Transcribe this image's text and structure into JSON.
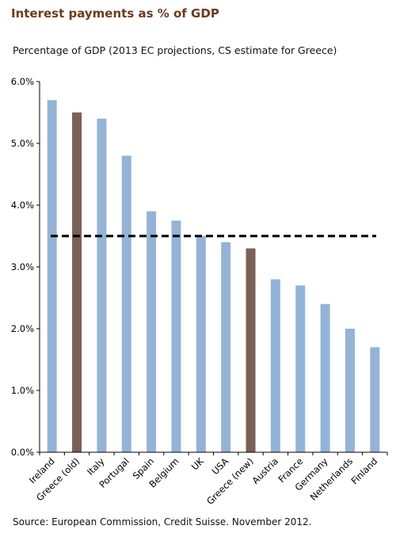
{
  "title": "Interest payments as % of GDP",
  "subtitle": "Percentage of GDP (2013 EC projections, CS estimate for Greece)",
  "source": "Source: European Commission, Credit Suisse. November 2012.",
  "colors": {
    "default_bar": "#95b3d7",
    "highlight_bar": "#7a6058",
    "reference_line": "#000000"
  },
  "chart_data": {
    "type": "bar",
    "categories": [
      "Ireland",
      "Greece (old)",
      "Italy",
      "Portugal",
      "Spain",
      "Belgium",
      "UK",
      "USA",
      "Greece (new)",
      "Austria",
      "France",
      "Germany",
      "Netherlands",
      "Finland"
    ],
    "values": [
      5.7,
      5.5,
      5.4,
      4.8,
      3.9,
      3.75,
      3.5,
      3.4,
      3.3,
      2.8,
      2.7,
      2.4,
      2.0,
      1.7
    ],
    "highlighted": [
      "Greece (old)",
      "Greece (new)"
    ],
    "reference_line": {
      "value": 3.5,
      "style": "dashed"
    },
    "ylim": [
      0,
      6
    ],
    "yticks": [
      "0.0%",
      "1.0%",
      "2.0%",
      "3.0%",
      "4.0%",
      "5.0%",
      "6.0%"
    ],
    "grid": false
  }
}
